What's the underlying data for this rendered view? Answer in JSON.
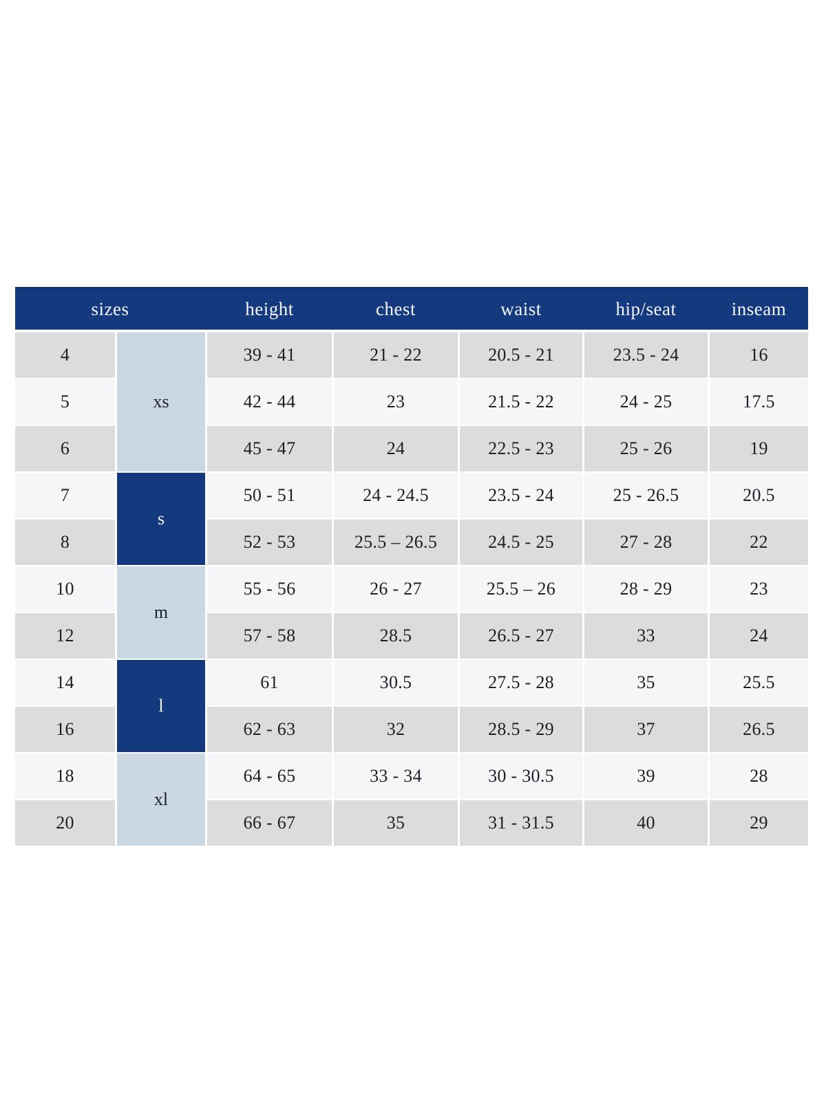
{
  "colors": {
    "header_bg": "#14397e",
    "header_text": "#f4f5f7",
    "group_light_bg": "#ccd7e4",
    "group_dark_bg": "#14397e",
    "row_gray": "#dcdcdc",
    "row_light": "#f5f6f7",
    "cell_text": "#1d1f24",
    "page_bg": "#ffffff"
  },
  "chart_data": {
    "type": "table",
    "columns": [
      "sizes",
      "height",
      "chest",
      "waist",
      "hip/seat",
      "inseam"
    ],
    "header": {
      "sizes": "sizes",
      "height": "height",
      "chest": "chest",
      "waist": "waist",
      "hip_seat": "hip/seat",
      "inseam": "inseam"
    },
    "groups": [
      {
        "label": "xs",
        "tone": "light",
        "rows": [
          {
            "size": "4",
            "height": "39 - 41",
            "chest": "21 - 22",
            "waist": "20.5 - 21",
            "hip_seat": "23.5 - 24",
            "inseam": "16"
          },
          {
            "size": "5",
            "height": "42 - 44",
            "chest": "23",
            "waist": "21.5 - 22",
            "hip_seat": "24 - 25",
            "inseam": "17.5"
          },
          {
            "size": "6",
            "height": "45 - 47",
            "chest": "24",
            "waist": "22.5 - 23",
            "hip_seat": "25 - 26",
            "inseam": "19"
          }
        ]
      },
      {
        "label": "s",
        "tone": "dark",
        "rows": [
          {
            "size": "7",
            "height": "50 - 51",
            "chest": "24 - 24.5",
            "waist": "23.5 - 24",
            "hip_seat": "25 - 26.5",
            "inseam": "20.5"
          },
          {
            "size": "8",
            "height": "52 - 53",
            "chest": "25.5 – 26.5",
            "waist": "24.5 - 25",
            "hip_seat": "27 - 28",
            "inseam": "22"
          }
        ]
      },
      {
        "label": "m",
        "tone": "light",
        "rows": [
          {
            "size": "10",
            "height": "55 - 56",
            "chest": "26 - 27",
            "waist": "25.5 – 26",
            "hip_seat": "28 - 29",
            "inseam": "23"
          },
          {
            "size": "12",
            "height": "57 - 58",
            "chest": "28.5",
            "waist": "26.5 - 27",
            "hip_seat": "33",
            "inseam": "24"
          }
        ]
      },
      {
        "label": "l",
        "tone": "dark",
        "rows": [
          {
            "size": "14",
            "height": "61",
            "chest": "30.5",
            "waist": "27.5 - 28",
            "hip_seat": "35",
            "inseam": "25.5"
          },
          {
            "size": "16",
            "height": "62 - 63",
            "chest": "32",
            "waist": "28.5 - 29",
            "hip_seat": "37",
            "inseam": "26.5"
          }
        ]
      },
      {
        "label": "xl",
        "tone": "light",
        "rows": [
          {
            "size": "18",
            "height": "64 - 65",
            "chest": "33 - 34",
            "waist": "30 - 30.5",
            "hip_seat": "39",
            "inseam": "28"
          },
          {
            "size": "20",
            "height": "66 - 67",
            "chest": "35",
            "waist": "31 - 31.5",
            "hip_seat": "40",
            "inseam": "29"
          }
        ]
      }
    ]
  }
}
